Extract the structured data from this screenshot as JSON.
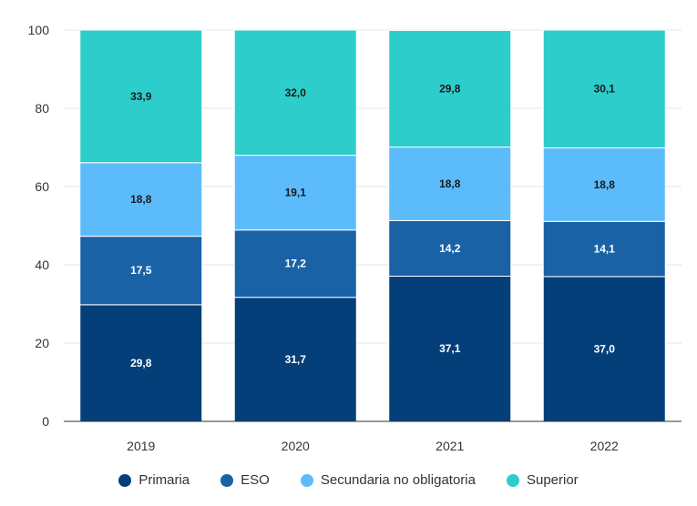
{
  "chart_data": {
    "type": "bar",
    "stacked": true,
    "categories": [
      "2019",
      "2020",
      "2021",
      "2022"
    ],
    "ylim": [
      0,
      100
    ],
    "yticks": [
      0,
      20,
      40,
      60,
      80,
      100
    ],
    "grid": true,
    "legend_position": "bottom",
    "series": [
      {
        "name": "Primaria",
        "color": "#053f7a",
        "label_color": "#ffffff",
        "values": [
          29.8,
          31.7,
          37.1,
          37.0
        ],
        "labels": [
          "29,8",
          "31,7",
          "37,1",
          "37,0"
        ]
      },
      {
        "name": "ESO",
        "color": "#1a62a6",
        "label_color": "#ffffff",
        "values": [
          17.5,
          17.2,
          14.2,
          14.1
        ],
        "labels": [
          "17,5",
          "17,2",
          "14,2",
          "14,1"
        ]
      },
      {
        "name": "Secundaria no obligatoria",
        "color": "#5cbcfb",
        "label_color": "#1a1a1a",
        "values": [
          18.8,
          19.1,
          18.8,
          18.8
        ],
        "labels": [
          "18,8",
          "19,1",
          "18,8",
          "18,8"
        ]
      },
      {
        "name": "Superior",
        "color": "#2dcdcb",
        "label_color": "#1a1a1a",
        "values": [
          33.9,
          32.0,
          29.8,
          30.1
        ],
        "labels": [
          "33,9",
          "32,0",
          "29,8",
          "30,1"
        ]
      }
    ]
  }
}
